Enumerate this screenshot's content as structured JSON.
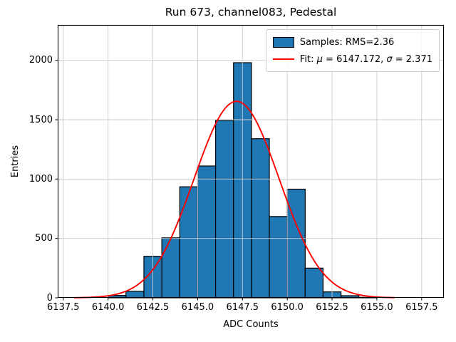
{
  "title": "Run 673, channel083, Pedestal",
  "axes": {
    "xlabel": "ADC Counts",
    "ylabel": "Entries"
  },
  "legend": {
    "samples_label": "Samples: RMS=2.36",
    "fit_prefix": "Fit: ",
    "mu_symbol": "μ",
    "fit_mid": " = 6147.172, ",
    "sigma_symbol": "σ",
    "fit_suffix": " = 2.371",
    "position": "upper right"
  },
  "chart_data": {
    "type": "bar",
    "subtype": "histogram",
    "title": "Run 673, channel083, Pedestal",
    "xlabel": "ADC Counts",
    "ylabel": "Entries",
    "bin_width": 1,
    "bin_left_edges": [
      6140,
      6141,
      6142,
      6143,
      6144,
      6145,
      6146,
      6147,
      6148,
      6149,
      6150,
      6151,
      6152,
      6153,
      6154
    ],
    "counts": [
      20,
      55,
      350,
      505,
      935,
      1110,
      1495,
      1980,
      1340,
      685,
      915,
      250,
      50,
      18,
      4
    ],
    "fit": {
      "type": "gaussian",
      "mu": 6147.172,
      "sigma": 2.371,
      "amplitude": 1655,
      "x_min": 6138.1,
      "x_max": 6156.0
    },
    "stats": {
      "rms": 2.36
    },
    "xlim": [
      6137.19,
      6158.74
    ],
    "ylim": [
      0,
      2298
    ],
    "xtick_values": [
      6137.5,
      6140.0,
      6142.5,
      6145.0,
      6147.5,
      6150.0,
      6152.5,
      6155.0,
      6157.5
    ],
    "xtick_labels": [
      "6137.5",
      "6140.0",
      "6142.5",
      "6145.0",
      "6147.5",
      "6150.0",
      "6152.5",
      "6155.0",
      "6157.5"
    ],
    "ytick_values": [
      0,
      500,
      1000,
      1500,
      2000
    ],
    "ytick_labels": [
      "0",
      "500",
      "1000",
      "1500",
      "2000"
    ],
    "grid": true,
    "legend_position": "upper right",
    "colors": {
      "bar_fill": "#1f77b4",
      "bar_edge": "#000000",
      "fit_line": "#ff0000",
      "grid_line": "#cccccc",
      "spine": "#000000",
      "text": "#000000",
      "legend_border": "#cccccc"
    }
  }
}
